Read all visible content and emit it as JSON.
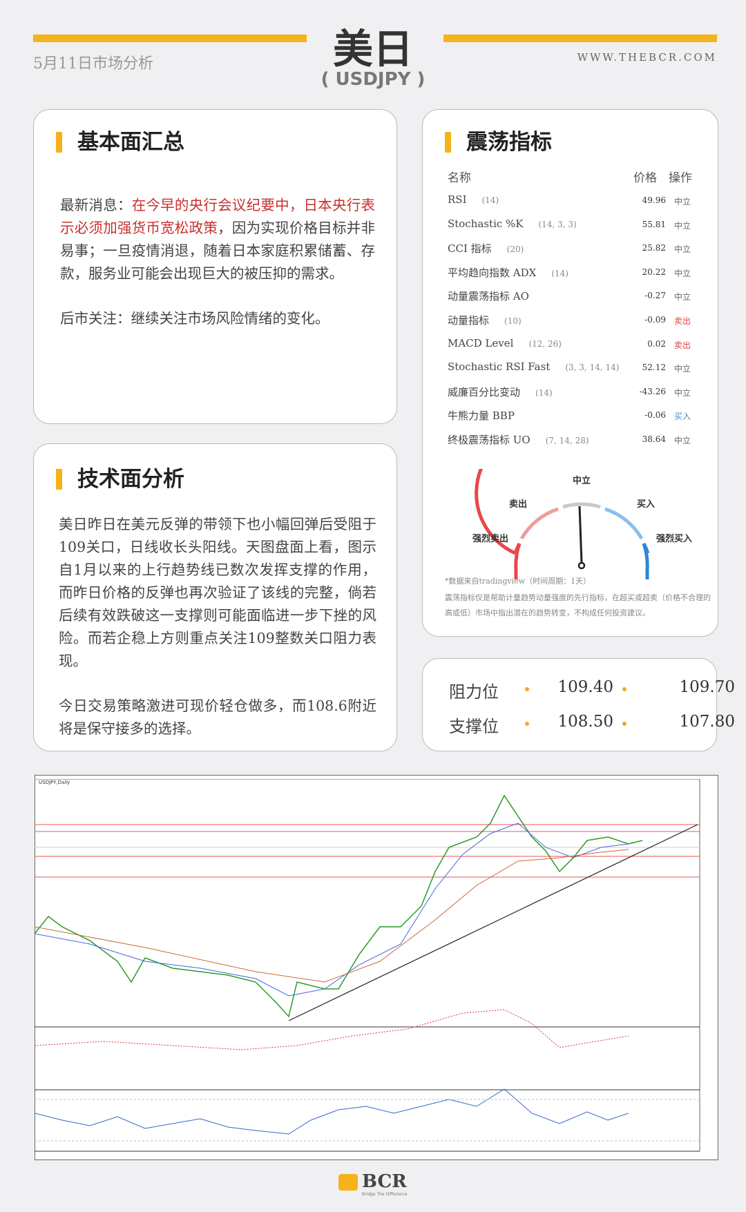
{
  "header": {
    "title": "美日",
    "subtitle": "( USDJPY )",
    "date": "5月11日市场分析",
    "site": "WWW.THEBCR.COM"
  },
  "fundamentals": {
    "heading": "基本面汇总",
    "news": {
      "prefix": "最新消息：",
      "highlight": "在今早的央行会议纪要中，日本央行表示必须加强货币宽松政策",
      "rest": "，因为实现价格目标并非易事；一旦疫情消退，随着日本家庭积累储蓄、存款，服务业可能会出现巨大的被压抑的需求。"
    },
    "outlook": "后市关注：继续关注市场风险情绪的变化。"
  },
  "technical": {
    "heading": "技术面分析",
    "paragraphs": [
      "美日昨日在美元反弹的带领下也小幅回弹后受阻于109关口，日线收长头阳线。天图盘面上看，图示自1月以来的上行趋势线已数次发挥支撑的作用，而昨日价格的反弹也再次验证了该线的完整，倘若后续有效跌破这一支撑则可能面临进一步下挫的风险。而若企稳上方则重点关注109整数关口阻力表现。",
      "今日交易策略激进可现价轻仓做多，而108.6附近将是保守接多的选择。"
    ]
  },
  "oscillators": {
    "heading": "震荡指标",
    "columns": [
      "名称",
      "价格",
      "操作"
    ],
    "rows": [
      {
        "name": "RSI",
        "params": "(14)",
        "price": 49.96,
        "action": "中立",
        "color": "#666666"
      },
      {
        "name": "Stochastic %K",
        "params": "(14, 3, 3)",
        "price": 55.81,
        "action": "中立",
        "color": "#666666"
      },
      {
        "name": "CCI 指标",
        "params": "(20)",
        "price": 25.82,
        "action": "中立",
        "color": "#666666"
      },
      {
        "name": "平均趋向指数 ADX",
        "params": "(14)",
        "price": 20.22,
        "action": "中立",
        "color": "#666666"
      },
      {
        "name": "动量震荡指标 AO",
        "params": "",
        "price": -0.27,
        "action": "中立",
        "color": "#666666"
      },
      {
        "name": "动量指标",
        "params": "(10)",
        "price": -0.09,
        "action": "卖出",
        "color": "#e0403a"
      },
      {
        "name": "MACD Level",
        "params": "(12, 26)",
        "price": 0.02,
        "action": "卖出",
        "color": "#e0403a"
      },
      {
        "name": "Stochastic RSI Fast",
        "params": "(3, 3, 14, 14)",
        "price": 52.12,
        "action": "中立",
        "color": "#666666"
      },
      {
        "name": "威廉百分比变动",
        "params": "(14)",
        "price": -43.26,
        "action": "中立",
        "color": "#666666"
      },
      {
        "name": "牛熊力量 BBP",
        "params": "",
        "price": -0.06,
        "action": "买入",
        "color": "#3a8fd8"
      },
      {
        "name": "终极震荡指标 UO",
        "params": "(7, 14, 28)",
        "price": 38.64,
        "action": "中立",
        "color": "#666666"
      }
    ],
    "gauge": {
      "neutral": "中立",
      "sell": "卖出",
      "buy": "买入",
      "strong_sell": "强烈卖出",
      "strong_buy": "强烈买入"
    },
    "notes": [
      "*数据来自tradingview（时间周期：1天）",
      "震荡指标仅是帮助计量趋势动量强度的先行指标，在超买或超卖（价格不合理的高或低）市场中指出潜在的趋势转变，不构成任何投资建议。"
    ]
  },
  "levels": {
    "resistance": {
      "label": "阻力位",
      "values": [
        "109.40",
        "109.70"
      ]
    },
    "support": {
      "label": "支撑位",
      "values": [
        "108.50",
        "107.80"
      ]
    }
  },
  "chart": {
    "label": "USDJPY,Daily"
  },
  "footer": {
    "brand": "BCR",
    "tagline": "Bridge The Difference"
  }
}
